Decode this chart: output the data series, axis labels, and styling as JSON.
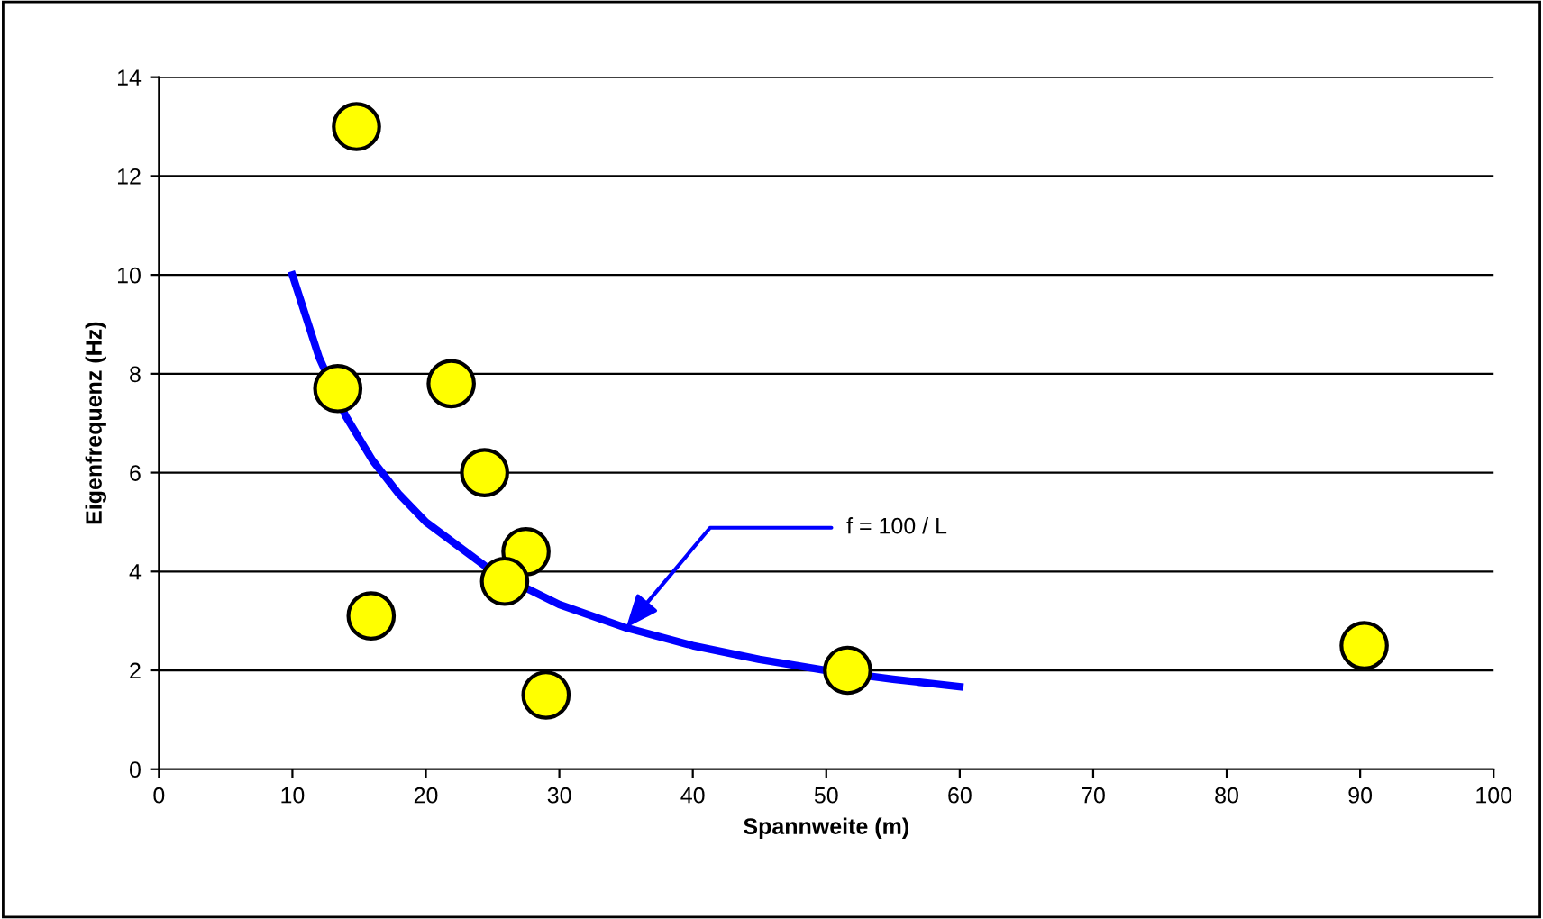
{
  "chart_data": {
    "type": "scatter",
    "xlabel": "Spannweite (m)",
    "ylabel": "Eigenfrequenz (Hz)",
    "xlim": [
      0,
      100
    ],
    "xticks": [
      0,
      10,
      20,
      30,
      40,
      50,
      60,
      70,
      80,
      90,
      100
    ],
    "ylim": [
      0,
      14
    ],
    "yticks": [
      0,
      2,
      4,
      6,
      8,
      10,
      12,
      14
    ],
    "grid": "y",
    "legend": false,
    "series": [
      {
        "type": "line",
        "color": "#0000ff",
        "marker": "none",
        "line_style": "solid",
        "x": [
          10,
          12,
          14,
          16,
          18,
          20,
          25,
          30,
          35,
          40,
          45,
          50,
          55,
          60
        ],
        "values": [
          10,
          8.33,
          7.14,
          6.25,
          5.56,
          5,
          4,
          3.33,
          2.86,
          2.5,
          2.22,
          2,
          1.82,
          1.67
        ]
      },
      {
        "color": "#ffff00",
        "marker": "circle",
        "x": [
          14.8,
          13.4,
          21.9,
          24.4,
          27.5,
          25.9,
          15.9,
          29.0,
          51.6,
          90.3
        ],
        "values": [
          13.0,
          7.7,
          7.8,
          6.0,
          4.4,
          3.8,
          3.1,
          1.5,
          2.0,
          2.5
        ]
      }
    ],
    "annotations": [
      {
        "text": "f = 100 / L",
        "x": 35,
        "y": 2.86
      }
    ]
  }
}
